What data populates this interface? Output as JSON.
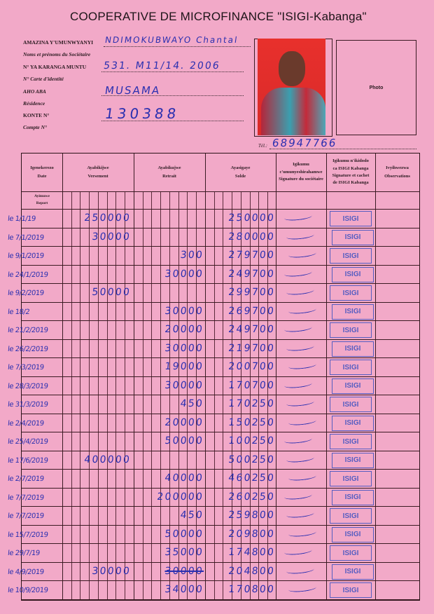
{
  "header": {
    "title": "COOPERATIVE DE MICROFINANCE \"ISIGI-Kabanga\""
  },
  "fields": {
    "name_label": "AMAZINA Y'UMUNWYANYI",
    "name_label_fr": "Noms et prénoms du Sociétaire",
    "name_value": "NDIMOKUBWAYO Chantal",
    "id_label": "N° YA KARANGA MUNTU",
    "id_label_fr": "N° Carte d'identité",
    "id_value": "531. M11/14. 2006",
    "residence_label": "AHO ABA",
    "residence_label_fr": "Résidence",
    "residence_value": "MUSAMA",
    "account_label": "KONTE N°",
    "account_label_fr": "Compte N°",
    "account_value": "130388",
    "photo_label": "Photo",
    "tel_label": "Tél.:",
    "tel_value": "68947766"
  },
  "table": {
    "headers": {
      "date": [
        "Igenekerezo",
        "Date"
      ],
      "deposit": [
        "Ayabikijwe",
        "Versement"
      ],
      "withdrawal": [
        "Ayabikujwe",
        "Retrait"
      ],
      "balance": [
        "Ayasigaye",
        "Solde"
      ],
      "member_sig": [
        "Igikumu",
        "c'umunyeshirahamwe",
        "Signature du sociétaire"
      ],
      "isigi_sig": [
        "Igikumu n'ikidodo",
        "ca ISIGI Kabanga",
        "Signature et cachet",
        "de ISIGI Kabanga"
      ],
      "observations": [
        "Ivyihwezwa",
        "Observations"
      ]
    },
    "report_label": [
      "Ayimuwe",
      "Report"
    ],
    "stamp_text": "ISIGI",
    "rows": [
      {
        "date": "le 1/1/19",
        "deposit": "250000",
        "withdrawal": "",
        "balance": "250000"
      },
      {
        "date": "le 7/1/2019",
        "deposit": "30000",
        "withdrawal": "",
        "balance": "280000"
      },
      {
        "date": "le 9/1/2019",
        "deposit": "",
        "withdrawal": "300",
        "balance": "279700"
      },
      {
        "date": "le 24/1/2019",
        "deposit": "",
        "withdrawal": "30000",
        "balance": "249700"
      },
      {
        "date": "le 9/2/2019",
        "deposit": "50000",
        "withdrawal": "",
        "balance": "299700"
      },
      {
        "date": "le 18/2",
        "deposit": "",
        "withdrawal": "30000",
        "balance": "269700"
      },
      {
        "date": "le 21/2/2019",
        "deposit": "",
        "withdrawal": "20000",
        "balance": "249700"
      },
      {
        "date": "le 26/2/2019",
        "deposit": "",
        "withdrawal": "30000",
        "balance": "219700"
      },
      {
        "date": "le 7/3/2019",
        "deposit": "",
        "withdrawal": "19000",
        "balance": "200700"
      },
      {
        "date": "le 28/3/2019",
        "deposit": "",
        "withdrawal": "30000",
        "balance": "170700"
      },
      {
        "date": "le 31/3/2019",
        "deposit": "",
        "withdrawal": "450",
        "balance": "170250"
      },
      {
        "date": "le 2/4/2019",
        "deposit": "",
        "withdrawal": "20000",
        "balance": "150250"
      },
      {
        "date": "le 25/4/2019",
        "deposit": "",
        "withdrawal": "50000",
        "balance": "100250"
      },
      {
        "date": "le 17/6/2019",
        "deposit": "400000",
        "withdrawal": "",
        "balance": "500250"
      },
      {
        "date": "le 2/7/2019",
        "deposit": "",
        "withdrawal": "40000",
        "balance": "460250"
      },
      {
        "date": "le 7/7/2019",
        "deposit": "",
        "withdrawal": "200000",
        "balance": "260250"
      },
      {
        "date": "le 7/7/2019",
        "deposit": "",
        "withdrawal": "450",
        "balance": "259800"
      },
      {
        "date": "le 15/7/2019",
        "deposit": "",
        "withdrawal": "50000",
        "balance": "209800"
      },
      {
        "date": "le 29/7/19",
        "deposit": "",
        "withdrawal": "35000",
        "balance": "174800"
      },
      {
        "date": "le 4/9/2019",
        "deposit": "30000",
        "withdrawal": "30000",
        "withdrawal_struck": true,
        "balance": "204800"
      },
      {
        "date": "le 10/9/2019",
        "deposit": "",
        "withdrawal": "34000",
        "balance": "170800"
      }
    ]
  },
  "colors": {
    "paper": "#f2a9c8",
    "ink": "#2a2fb0",
    "stamp": "#3a50c0"
  }
}
